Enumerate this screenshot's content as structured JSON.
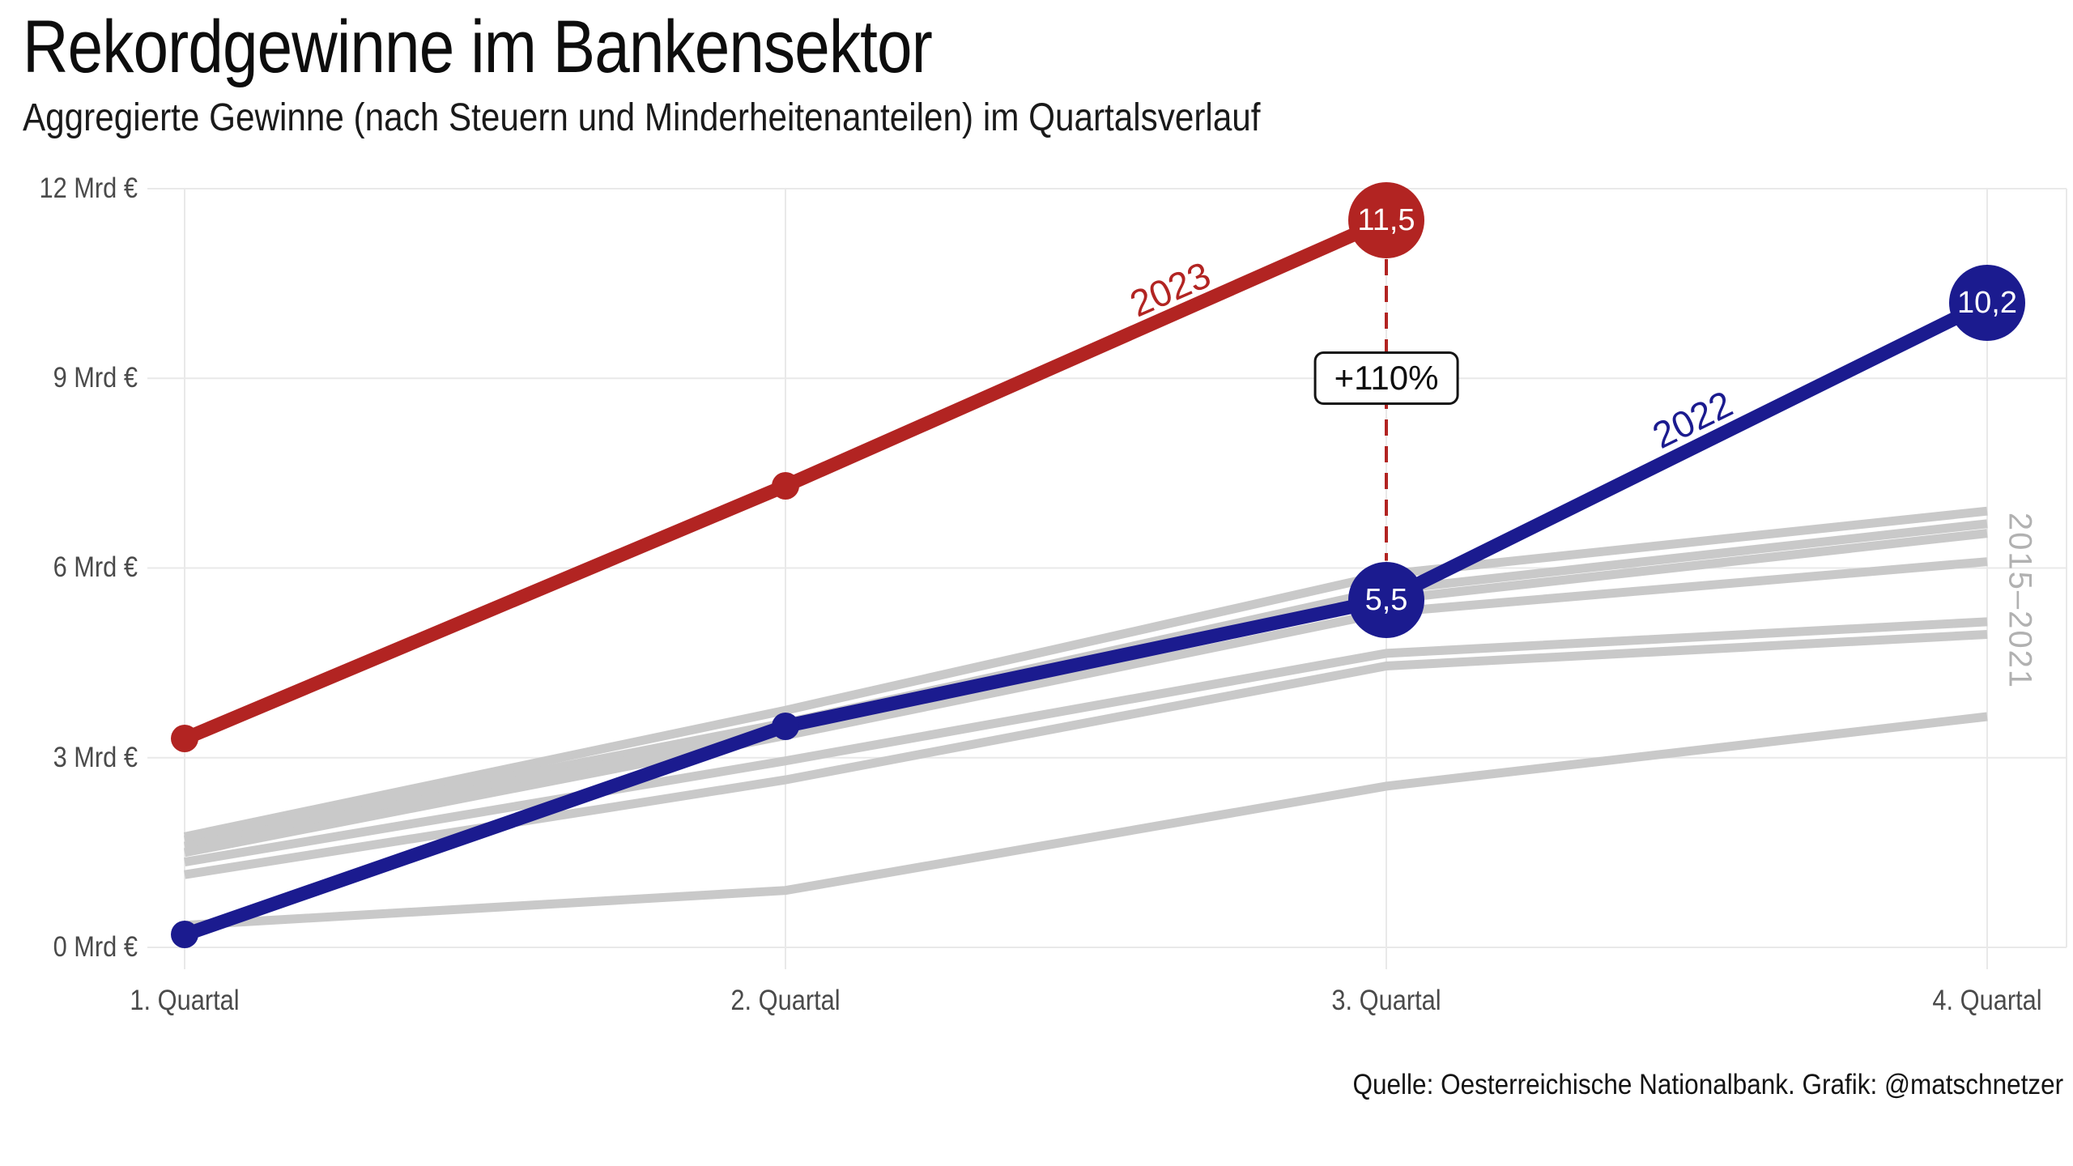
{
  "source": "Quelle: Oesterreichische Nationalbank. Grafik: @matschnetzer",
  "chart_data": {
    "type": "line",
    "title": "Rekordgewinne im Bankensektor",
    "subtitle": "Aggregierte Gewinne (nach Steuern und Minderheitenanteilen) im Quartalsverlauf",
    "categories": [
      "1. Quartal",
      "2. Quartal",
      "3. Quartal",
      "4. Quartal"
    ],
    "ylim": [
      0,
      12
    ],
    "grid": true,
    "legend_position": "inline-labels",
    "y_ticks": [
      {
        "value": 0,
        "label": "0 Mrd €"
      },
      {
        "value": 3,
        "label": "3 Mrd €"
      },
      {
        "value": 6,
        "label": "6 Mrd €"
      },
      {
        "value": 9,
        "label": "9 Mrd €"
      },
      {
        "value": 12,
        "label": "12 Mrd €"
      }
    ],
    "series": [
      {
        "name": "2023",
        "color": "#b22422",
        "values": [
          3.3,
          7.3,
          11.5
        ],
        "point_labels": {
          "2": "11,5"
        }
      },
      {
        "name": "2022",
        "color": "#1b1b8f",
        "values": [
          0.2,
          3.5,
          5.5,
          10.2
        ],
        "point_labels": {
          "2": "5,5",
          "3": "10,2"
        }
      }
    ],
    "background_series": {
      "label": "2015–2021",
      "color": "#c9c9c9",
      "lines": [
        [
          1.75,
          3.75,
          5.9,
          6.9
        ],
        [
          1.7,
          3.55,
          5.65,
          6.7
        ],
        [
          1.6,
          3.45,
          5.5,
          6.55
        ],
        [
          1.5,
          3.35,
          5.3,
          6.1
        ],
        [
          1.35,
          2.95,
          4.65,
          5.15
        ],
        [
          1.15,
          2.65,
          4.45,
          4.95
        ],
        [
          0.35,
          0.9,
          2.55,
          3.65
        ]
      ]
    },
    "annotation": {
      "label": "+110%",
      "at_category": "3. Quartal",
      "between": [
        "2023",
        "2022"
      ]
    }
  }
}
